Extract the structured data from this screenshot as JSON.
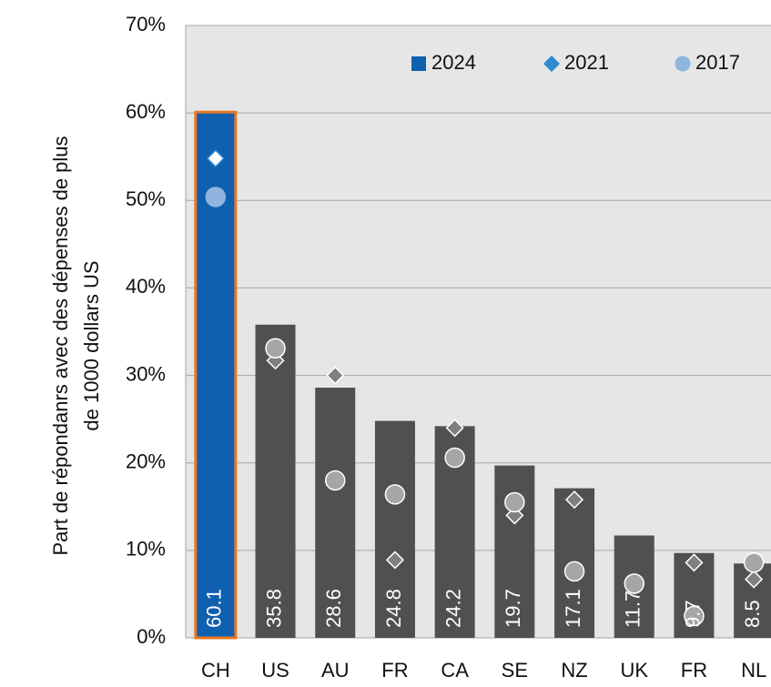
{
  "chart_data": {
    "type": "bar",
    "y_label": [
      "Part de répondanrs avec des dépenses de plus",
      "de 1000 dollars US"
    ],
    "categories": [
      "CH",
      "US",
      "AU",
      "FR",
      "CA",
      "SE",
      "NZ",
      "UK",
      "FR",
      "NL"
    ],
    "series": [
      {
        "name": "2024",
        "marker": "square",
        "color": "#505050",
        "legend_color": "#1060b0",
        "values": [
          60.1,
          35.8,
          28.6,
          24.8,
          24.2,
          19.7,
          17.1,
          11.7,
          9.7,
          8.5
        ]
      },
      {
        "name": "2021",
        "marker": "diamond",
        "color": "#7f7f7f",
        "legend_color": "#2e8bd0",
        "values": [
          54.8,
          31.7,
          30.0,
          8.9,
          24.0,
          14.0,
          15.8,
          6.0,
          8.6,
          6.7
        ]
      },
      {
        "name": "2017",
        "marker": "circle",
        "color": "#a6a6a6",
        "legend_color": "#8fb4e0",
        "values": [
          50.4,
          33.1,
          18.0,
          16.4,
          20.6,
          15.5,
          7.6,
          6.2,
          2.5,
          8.6
        ]
      }
    ],
    "highlight": 0,
    "highlight_color": "#1060b0",
    "highlight_edge": "#e87722",
    "ylim": [
      0,
      70
    ],
    "yticks": [
      {
        "value": 0,
        "label": "0%"
      },
      {
        "value": 10,
        "label": "10%"
      },
      {
        "value": 20,
        "label": "20%"
      },
      {
        "value": 30,
        "label": "30%"
      },
      {
        "value": 40,
        "label": "40%"
      },
      {
        "value": 50,
        "label": "50%"
      },
      {
        "value": 60,
        "label": "60%"
      },
      {
        "value": 70,
        "label": "70%"
      }
    ],
    "grid": true,
    "value_labels_inside": true
  }
}
